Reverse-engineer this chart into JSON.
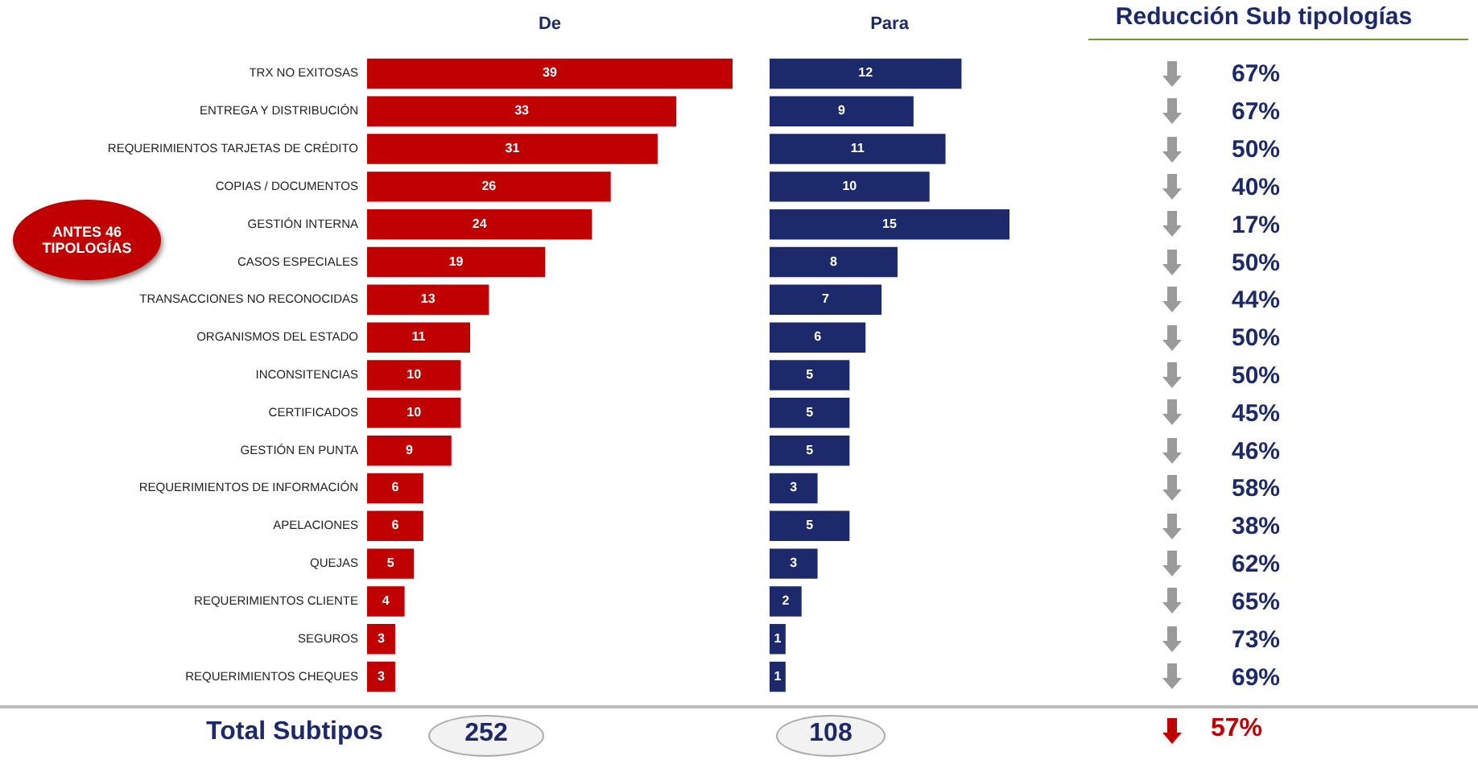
{
  "chart_data": [
    {
      "type": "bar",
      "orientation": "horizontal",
      "title": "De",
      "color": "#c00000",
      "data_labels": true,
      "categories": [
        "TRX NO EXITOSAS",
        "ENTREGA Y DISTRIBUCIÓN",
        "REQUERIMIENTOS TARJETAS DE CRÉDITO",
        "COPIAS / DOCUMENTOS",
        "GESTIÓN INTERNA",
        "CASOS ESPECIALES",
        "TRANSACCIONES NO RECONOCIDAS",
        "ORGANISMOS DEL ESTADO",
        "INCONSITENCIAS",
        "CERTIFICADOS",
        "GESTIÓN EN PUNTA",
        "REQUERIMIENTOS DE INFORMACIÓN",
        "APELACIONES",
        "QUEJAS",
        "REQUERIMIENTOS CLIENTE",
        "SEGUROS",
        "REQUERIMIENTOS CHEQUES"
      ],
      "values": [
        39,
        33,
        31,
        26,
        24,
        19,
        13,
        11,
        10,
        10,
        9,
        6,
        6,
        5,
        4,
        3,
        3
      ],
      "annotations": [
        "ANTES 46 TIPOLOGÍAS",
        "Total Subtipos",
        "252"
      ]
    },
    {
      "type": "bar",
      "orientation": "horizontal",
      "title": "Para",
      "color": "#1c2a6b",
      "data_labels": true,
      "values": [
        12,
        9,
        11,
        10,
        15,
        8,
        7,
        6,
        5,
        5,
        5,
        3,
        5,
        3,
        2,
        1,
        1
      ],
      "annotations": [
        "108"
      ]
    },
    {
      "type": "other",
      "title": "Reducción Sub tipologías",
      "color": "#1c2a6b",
      "value_labels": [
        "67%",
        "67%",
        "50%",
        "40%",
        "17%",
        "50%",
        "44%",
        "50%",
        "50%",
        "45%",
        "46%",
        "58%",
        "38%",
        "62%",
        "65%",
        "73%",
        "69%"
      ],
      "annotations": [
        "57%"
      ]
    }
  ]
}
